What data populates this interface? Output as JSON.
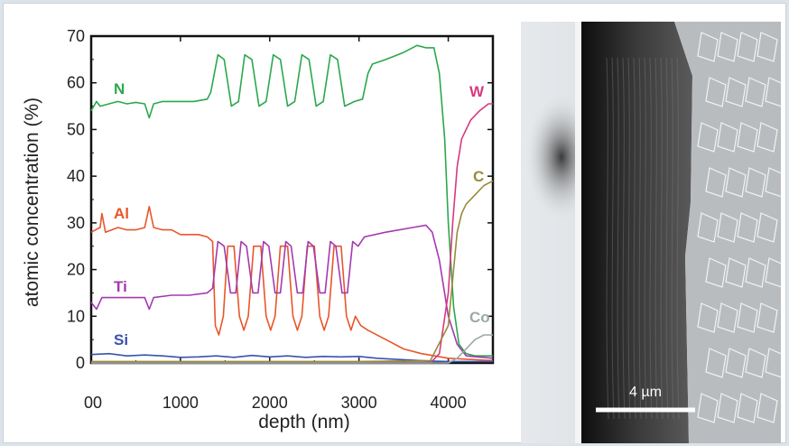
{
  "chart_data": {
    "type": "line",
    "xlabel": "depth (nm)",
    "ylabel": "atomic concentration (%)",
    "xlim": [
      0,
      4500
    ],
    "ylim": [
      0,
      70
    ],
    "xticks": [
      0,
      1000,
      2000,
      3000,
      4000
    ],
    "xtick_labels": [
      "00",
      "1000",
      "2000",
      "3000",
      "4000"
    ],
    "yticks": [
      0,
      10,
      20,
      30,
      40,
      50,
      60,
      70
    ],
    "ytick_labels": [
      "0",
      "10",
      "20",
      "30",
      "40",
      "50",
      "60",
      "70"
    ],
    "grid": false,
    "series": [
      {
        "name": "N",
        "color": "#2aa84e",
        "points": [
          [
            0,
            54
          ],
          [
            60,
            56
          ],
          [
            100,
            55
          ],
          [
            200,
            55.5
          ],
          [
            300,
            56
          ],
          [
            400,
            55.5
          ],
          [
            500,
            55.8
          ],
          [
            600,
            55.5
          ],
          [
            650,
            52.5
          ],
          [
            700,
            55.5
          ],
          [
            800,
            56
          ],
          [
            1000,
            56
          ],
          [
            1150,
            56
          ],
          [
            1300,
            56.5
          ],
          [
            1340,
            58
          ],
          [
            1420,
            66
          ],
          [
            1490,
            65
          ],
          [
            1570,
            55
          ],
          [
            1650,
            56
          ],
          [
            1720,
            66
          ],
          [
            1800,
            65
          ],
          [
            1880,
            55
          ],
          [
            1960,
            56
          ],
          [
            2040,
            66
          ],
          [
            2120,
            65
          ],
          [
            2200,
            55
          ],
          [
            2280,
            56
          ],
          [
            2360,
            66
          ],
          [
            2440,
            65
          ],
          [
            2520,
            55
          ],
          [
            2600,
            56
          ],
          [
            2680,
            66
          ],
          [
            2760,
            65
          ],
          [
            2840,
            55
          ],
          [
            2950,
            56
          ],
          [
            3040,
            56.5
          ],
          [
            3100,
            62
          ],
          [
            3150,
            64
          ],
          [
            3300,
            65
          ],
          [
            3500,
            66.5
          ],
          [
            3650,
            68
          ],
          [
            3750,
            67.5
          ],
          [
            3840,
            67.5
          ],
          [
            3900,
            62
          ],
          [
            3960,
            48
          ],
          [
            4000,
            30
          ],
          [
            4060,
            12
          ],
          [
            4120,
            4
          ],
          [
            4200,
            2
          ],
          [
            4300,
            1.5
          ],
          [
            4500,
            1.5
          ]
        ],
        "label": "N"
      },
      {
        "name": "Al",
        "color": "#e8562a",
        "points": [
          [
            0,
            28
          ],
          [
            100,
            29
          ],
          [
            120,
            32
          ],
          [
            160,
            28
          ],
          [
            300,
            29
          ],
          [
            400,
            28.5
          ],
          [
            500,
            28.5
          ],
          [
            600,
            29
          ],
          [
            650,
            33.5
          ],
          [
            700,
            29
          ],
          [
            800,
            28.5
          ],
          [
            900,
            28.5
          ],
          [
            1000,
            27.5
          ],
          [
            1200,
            27.5
          ],
          [
            1300,
            27
          ],
          [
            1360,
            26
          ],
          [
            1390,
            8
          ],
          [
            1430,
            6
          ],
          [
            1480,
            10
          ],
          [
            1530,
            25
          ],
          [
            1600,
            25
          ],
          [
            1660,
            10
          ],
          [
            1710,
            7
          ],
          [
            1760,
            10
          ],
          [
            1820,
            25
          ],
          [
            1900,
            25
          ],
          [
            1960,
            10
          ],
          [
            2010,
            7
          ],
          [
            2060,
            10
          ],
          [
            2120,
            25
          ],
          [
            2200,
            25
          ],
          [
            2260,
            10
          ],
          [
            2310,
            7
          ],
          [
            2360,
            10
          ],
          [
            2420,
            25
          ],
          [
            2500,
            25
          ],
          [
            2560,
            10
          ],
          [
            2610,
            7
          ],
          [
            2660,
            10
          ],
          [
            2720,
            25
          ],
          [
            2800,
            25
          ],
          [
            2860,
            10
          ],
          [
            2910,
            7
          ],
          [
            2960,
            10
          ],
          [
            3020,
            8
          ],
          [
            3100,
            7
          ],
          [
            3300,
            5
          ],
          [
            3500,
            3
          ],
          [
            3700,
            2
          ],
          [
            3850,
            1.5
          ],
          [
            4000,
            1
          ],
          [
            4500,
            0.5
          ]
        ],
        "label": "Al"
      },
      {
        "name": "Ti",
        "color": "#a33ab0",
        "points": [
          [
            0,
            13
          ],
          [
            60,
            11.5
          ],
          [
            120,
            14
          ],
          [
            300,
            14
          ],
          [
            500,
            14
          ],
          [
            600,
            14
          ],
          [
            650,
            11.5
          ],
          [
            700,
            14
          ],
          [
            900,
            14.5
          ],
          [
            1100,
            14.5
          ],
          [
            1300,
            15
          ],
          [
            1360,
            16
          ],
          [
            1420,
            26
          ],
          [
            1490,
            25
          ],
          [
            1560,
            15
          ],
          [
            1620,
            15
          ],
          [
            1680,
            26
          ],
          [
            1740,
            25
          ],
          [
            1810,
            15
          ],
          [
            1870,
            15
          ],
          [
            1930,
            26
          ],
          [
            1990,
            25
          ],
          [
            2060,
            15
          ],
          [
            2120,
            15
          ],
          [
            2180,
            26
          ],
          [
            2240,
            25
          ],
          [
            2310,
            15
          ],
          [
            2370,
            15
          ],
          [
            2430,
            26
          ],
          [
            2490,
            25
          ],
          [
            2560,
            15
          ],
          [
            2620,
            15
          ],
          [
            2680,
            26
          ],
          [
            2740,
            25
          ],
          [
            2810,
            15
          ],
          [
            2870,
            15
          ],
          [
            2930,
            26
          ],
          [
            2990,
            25
          ],
          [
            3060,
            27
          ],
          [
            3300,
            28
          ],
          [
            3600,
            29
          ],
          [
            3750,
            29.5
          ],
          [
            3820,
            28
          ],
          [
            3900,
            22
          ],
          [
            4000,
            10
          ],
          [
            4100,
            4
          ],
          [
            4200,
            1.5
          ],
          [
            4500,
            1
          ]
        ],
        "label": "Ti"
      },
      {
        "name": "Si",
        "color": "#3a52b0",
        "points": [
          [
            0,
            1.8
          ],
          [
            200,
            2
          ],
          [
            400,
            1.5
          ],
          [
            600,
            1.7
          ],
          [
            800,
            1.5
          ],
          [
            1000,
            1.2
          ],
          [
            1200,
            1.3
          ],
          [
            1400,
            1.5
          ],
          [
            1600,
            1.2
          ],
          [
            1800,
            1.6
          ],
          [
            2000,
            1.3
          ],
          [
            2200,
            1.5
          ],
          [
            2400,
            1.2
          ],
          [
            2600,
            1.4
          ],
          [
            2800,
            1.3
          ],
          [
            3000,
            1.4
          ],
          [
            3200,
            1
          ],
          [
            3400,
            0.8
          ],
          [
            3600,
            0.6
          ],
          [
            3800,
            0.4
          ],
          [
            4000,
            0.3
          ],
          [
            4500,
            0.3
          ]
        ],
        "label": "Si"
      },
      {
        "name": "W",
        "color": "#d63a7e",
        "points": [
          [
            0,
            0
          ],
          [
            3800,
            0
          ],
          [
            3900,
            2
          ],
          [
            4000,
            15
          ],
          [
            4050,
            30
          ],
          [
            4100,
            42
          ],
          [
            4150,
            48
          ],
          [
            4250,
            52
          ],
          [
            4350,
            54
          ],
          [
            4450,
            55.5
          ],
          [
            4500,
            55.5
          ]
        ],
        "label": "W"
      },
      {
        "name": "C",
        "color": "#9a8a3a",
        "points": [
          [
            0,
            0.3
          ],
          [
            3000,
            0.3
          ],
          [
            3800,
            0.5
          ],
          [
            4000,
            8
          ],
          [
            4050,
            18
          ],
          [
            4100,
            28
          ],
          [
            4150,
            32
          ],
          [
            4200,
            34
          ],
          [
            4300,
            36
          ],
          [
            4400,
            38
          ],
          [
            4500,
            39
          ]
        ],
        "label": "C"
      },
      {
        "name": "Co",
        "color": "#9aaaa6",
        "points": [
          [
            0,
            0
          ],
          [
            4000,
            0
          ],
          [
            4100,
            1
          ],
          [
            4200,
            3
          ],
          [
            4300,
            5
          ],
          [
            4400,
            6
          ],
          [
            4500,
            6
          ]
        ],
        "label": "Co"
      }
    ]
  },
  "scale_bar": {
    "label": "4 µm"
  }
}
